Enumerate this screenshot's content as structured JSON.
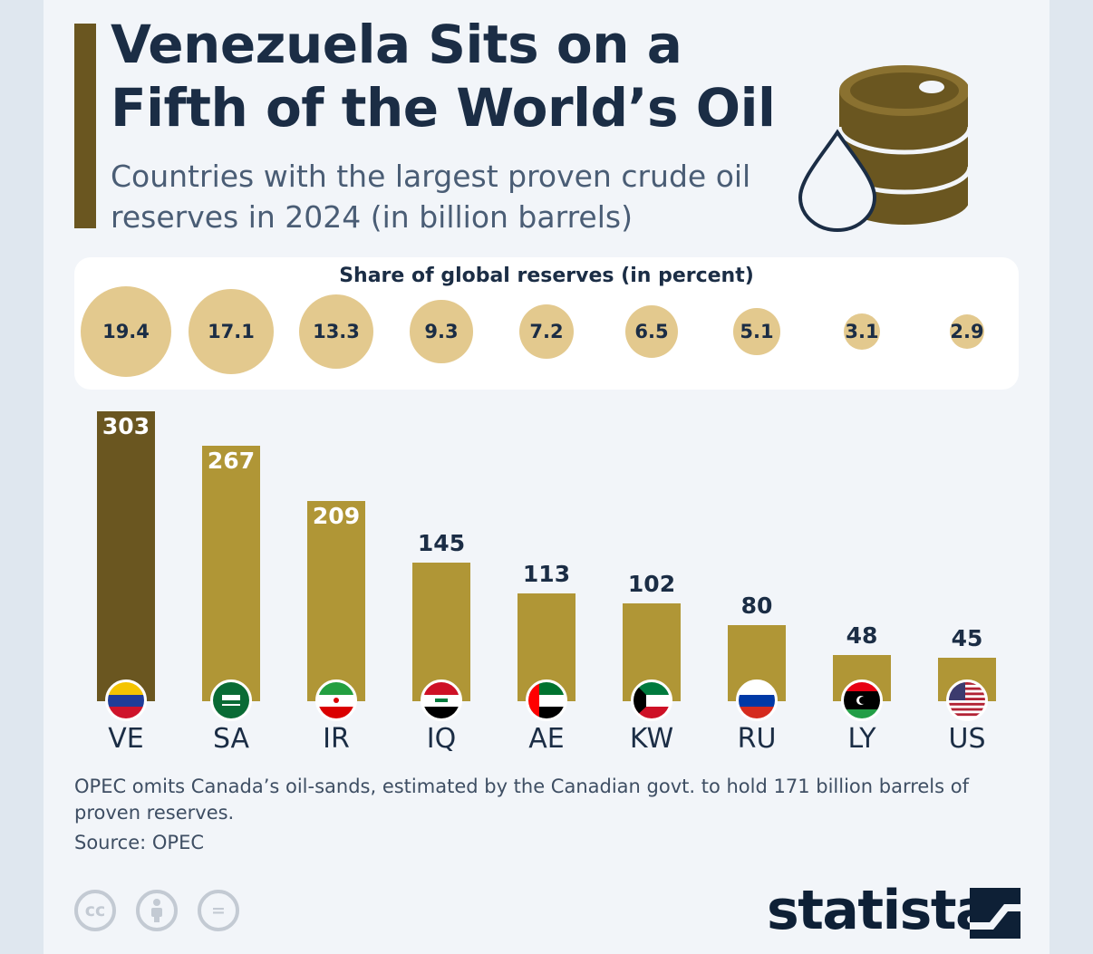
{
  "header": {
    "title": "Venezuela Sits on a Fifth of the World’s Oil",
    "subtitle": "Countries with the largest proven crude oil reserves in 2024 (in billion barrels)"
  },
  "share_panel": {
    "heading": "Share of global reserves (in percent)"
  },
  "chart_data": {
    "type": "bar",
    "title": "Venezuela Sits on a Fifth of the World’s Oil",
    "subtitle": "Countries with the largest proven crude oil reserves in 2024 (in billion barrels)",
    "categories": [
      "VE",
      "SA",
      "IR",
      "IQ",
      "AE",
      "KW",
      "RU",
      "LY",
      "US"
    ],
    "values": [
      303,
      267,
      209,
      145,
      113,
      102,
      80,
      48,
      45
    ],
    "share_percent": [
      "19.4",
      "17.1",
      "13.3",
      "9.3",
      "7.2",
      "6.5",
      "5.1",
      "3.1",
      "2.9"
    ],
    "ylabel": "billion barrels",
    "ylim": [
      0,
      303
    ],
    "highlight_color": "#6a5620",
    "bar_color": "#b09636",
    "bubble_color": "#e3c98e"
  },
  "footer": {
    "note": "OPEC omits Canada’s oil-sands, estimated by the Canadian govt. to hold 171 billion barrels of proven reserves.",
    "source": "Source: OPEC",
    "license_icons": [
      "cc-icon",
      "attribution-icon",
      "no-derivatives-icon"
    ],
    "brand": "statista"
  }
}
